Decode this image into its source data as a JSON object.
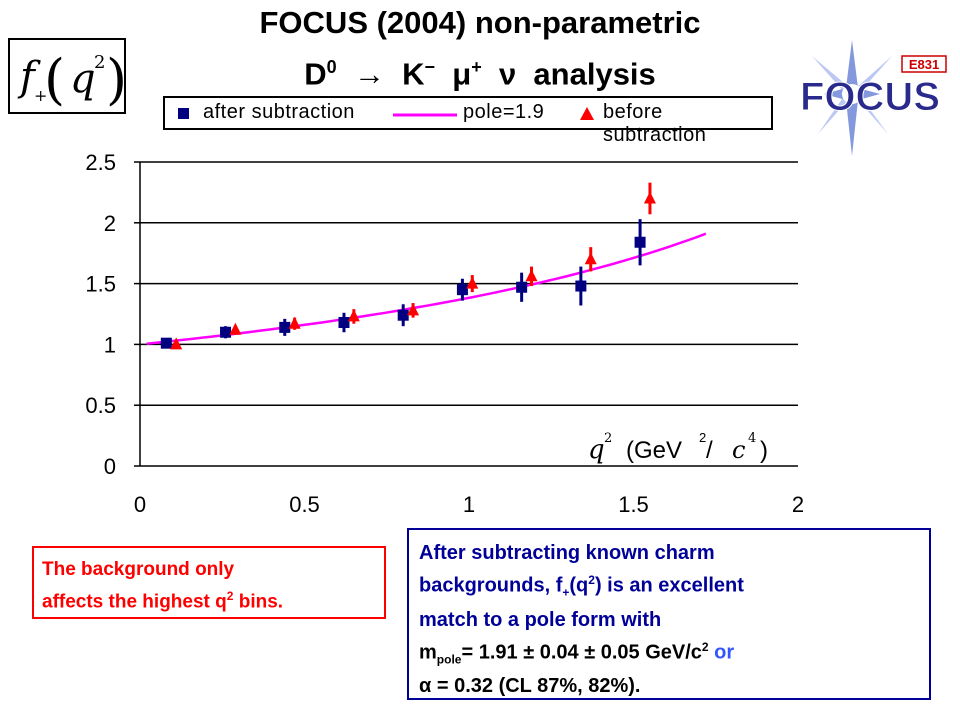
{
  "title_line1": "FOCUS (2004) non-parametric",
  "title_line2_parts": {
    "d": "D",
    "d_sup": "0",
    "arrow": "→",
    "k": "K",
    "k_sup": "−",
    "mu": "μ",
    "mu_sup": "+",
    "nu": "ν",
    "rest": "analysis"
  },
  "ylabel_box": {
    "f": "f",
    "f_sub": "+",
    "q": "q",
    "q_sup": "2"
  },
  "logo": {
    "tag": "E831",
    "word": "FOCUS",
    "brand_color": "#2a2a8c",
    "tag_color": "#cc0000"
  },
  "legend": {
    "after": "after subtraction",
    "pole": "pole=1.9",
    "before": "before subtraction"
  },
  "xaxis_label": {
    "q": "q",
    "q_sup": "2",
    "unit_open": "(GeV",
    "unit_sup": "2",
    "slash": " / ",
    "c": "c",
    "c_sup": "4",
    "close": ")"
  },
  "red_note": {
    "line1": "The background only",
    "line2_a": "affects the highest q",
    "line2_sup": "2",
    "line2_b": " bins."
  },
  "blue_note": {
    "line1": "After subtracting known charm",
    "line2_a": "backgrounds, f",
    "line2_sub": "+",
    "line2_b": "(q",
    "line2_sup": "2",
    "line2_c": ") is an excellent",
    "line3": "match to a pole form with",
    "line4_a": "m",
    "line4_sub": "pole",
    "line4_b": "= 1.91 ± 0.04 ± 0.05 GeV/c",
    "line4_sup": "2",
    "line4_or": " or",
    "line5_alpha": "α",
    "line5_rest": " = 0.32  (CL 87%, 82%)."
  },
  "colors": {
    "after": "#000080",
    "pole": "#ff00ff",
    "before": "#ff0000",
    "note_red": "#ff0000",
    "note_blue": "#000099"
  },
  "chart_data": {
    "type": "scatter",
    "xlim": [
      0,
      2
    ],
    "ylim": [
      0,
      2.5
    ],
    "x_ticks": [
      "0",
      "0.5",
      "1",
      "1.5",
      "2"
    ],
    "y_ticks": [
      "0",
      "0.5",
      "1",
      "1.5",
      "2",
      "2.5"
    ],
    "grid": "horizontal",
    "series": [
      {
        "name": "after subtraction",
        "marker": "square",
        "points": [
          {
            "x": 0.08,
            "y": 1.01,
            "err": 0.02
          },
          {
            "x": 0.26,
            "y": 1.1,
            "err": 0.05
          },
          {
            "x": 0.44,
            "y": 1.14,
            "err": 0.07
          },
          {
            "x": 0.62,
            "y": 1.18,
            "err": 0.08
          },
          {
            "x": 0.8,
            "y": 1.24,
            "err": 0.09
          },
          {
            "x": 0.98,
            "y": 1.45,
            "err": 0.09
          },
          {
            "x": 1.16,
            "y": 1.47,
            "err": 0.12
          },
          {
            "x": 1.34,
            "y": 1.48,
            "err": 0.16
          },
          {
            "x": 1.52,
            "y": 1.84,
            "err": 0.19
          }
        ]
      },
      {
        "name": "pole=1.9",
        "type": "line",
        "pole_mass": 1.9,
        "x_range": [
          0.02,
          1.72
        ]
      },
      {
        "name": "before subtraction",
        "marker": "triangle",
        "points": [
          {
            "x": 0.11,
            "y": 1.0,
            "err": 0.02
          },
          {
            "x": 0.29,
            "y": 1.12,
            "err": 0.03
          },
          {
            "x": 0.47,
            "y": 1.17,
            "err": 0.05
          },
          {
            "x": 0.65,
            "y": 1.23,
            "err": 0.06
          },
          {
            "x": 0.83,
            "y": 1.28,
            "err": 0.06
          },
          {
            "x": 1.01,
            "y": 1.5,
            "err": 0.07
          },
          {
            "x": 1.19,
            "y": 1.56,
            "err": 0.08
          },
          {
            "x": 1.37,
            "y": 1.7,
            "err": 0.1
          },
          {
            "x": 1.55,
            "y": 2.2,
            "err": 0.13
          }
        ]
      }
    ]
  }
}
